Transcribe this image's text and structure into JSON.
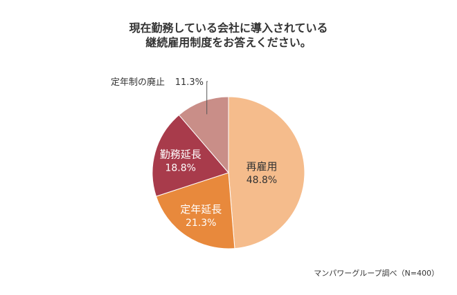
{
  "title_lines": [
    "現在勤務している会社に導入されている",
    "継続雇用制度をお答えください。"
  ],
  "source_note": "マンパワーグループ調べ（N=400）",
  "chart_data": {
    "type": "pie",
    "title": "現在勤務している会社に導入されている継続雇用制度をお答えください。",
    "unit": "%",
    "slices": [
      {
        "label": "再雇用",
        "value": 48.8,
        "value_text": "48.8%",
        "color": "#f5bc8c",
        "text_color": "#333333",
        "label_position": "inside"
      },
      {
        "label": "定年延長",
        "value": 21.3,
        "value_text": "21.3%",
        "color": "#e8893c",
        "text_color": "#ffffff",
        "label_position": "inside"
      },
      {
        "label": "勤務延長",
        "value": 18.8,
        "value_text": "18.8%",
        "color": "#a83b4b",
        "text_color": "#ffffff",
        "label_position": "inside"
      },
      {
        "label": "定年制の廃止",
        "value": 11.3,
        "value_text": "11.3%",
        "color": "#c98e88",
        "text_color": "#333333",
        "label_position": "outside-left"
      }
    ],
    "start_angle": "12 o'clock",
    "direction": "clockwise"
  }
}
